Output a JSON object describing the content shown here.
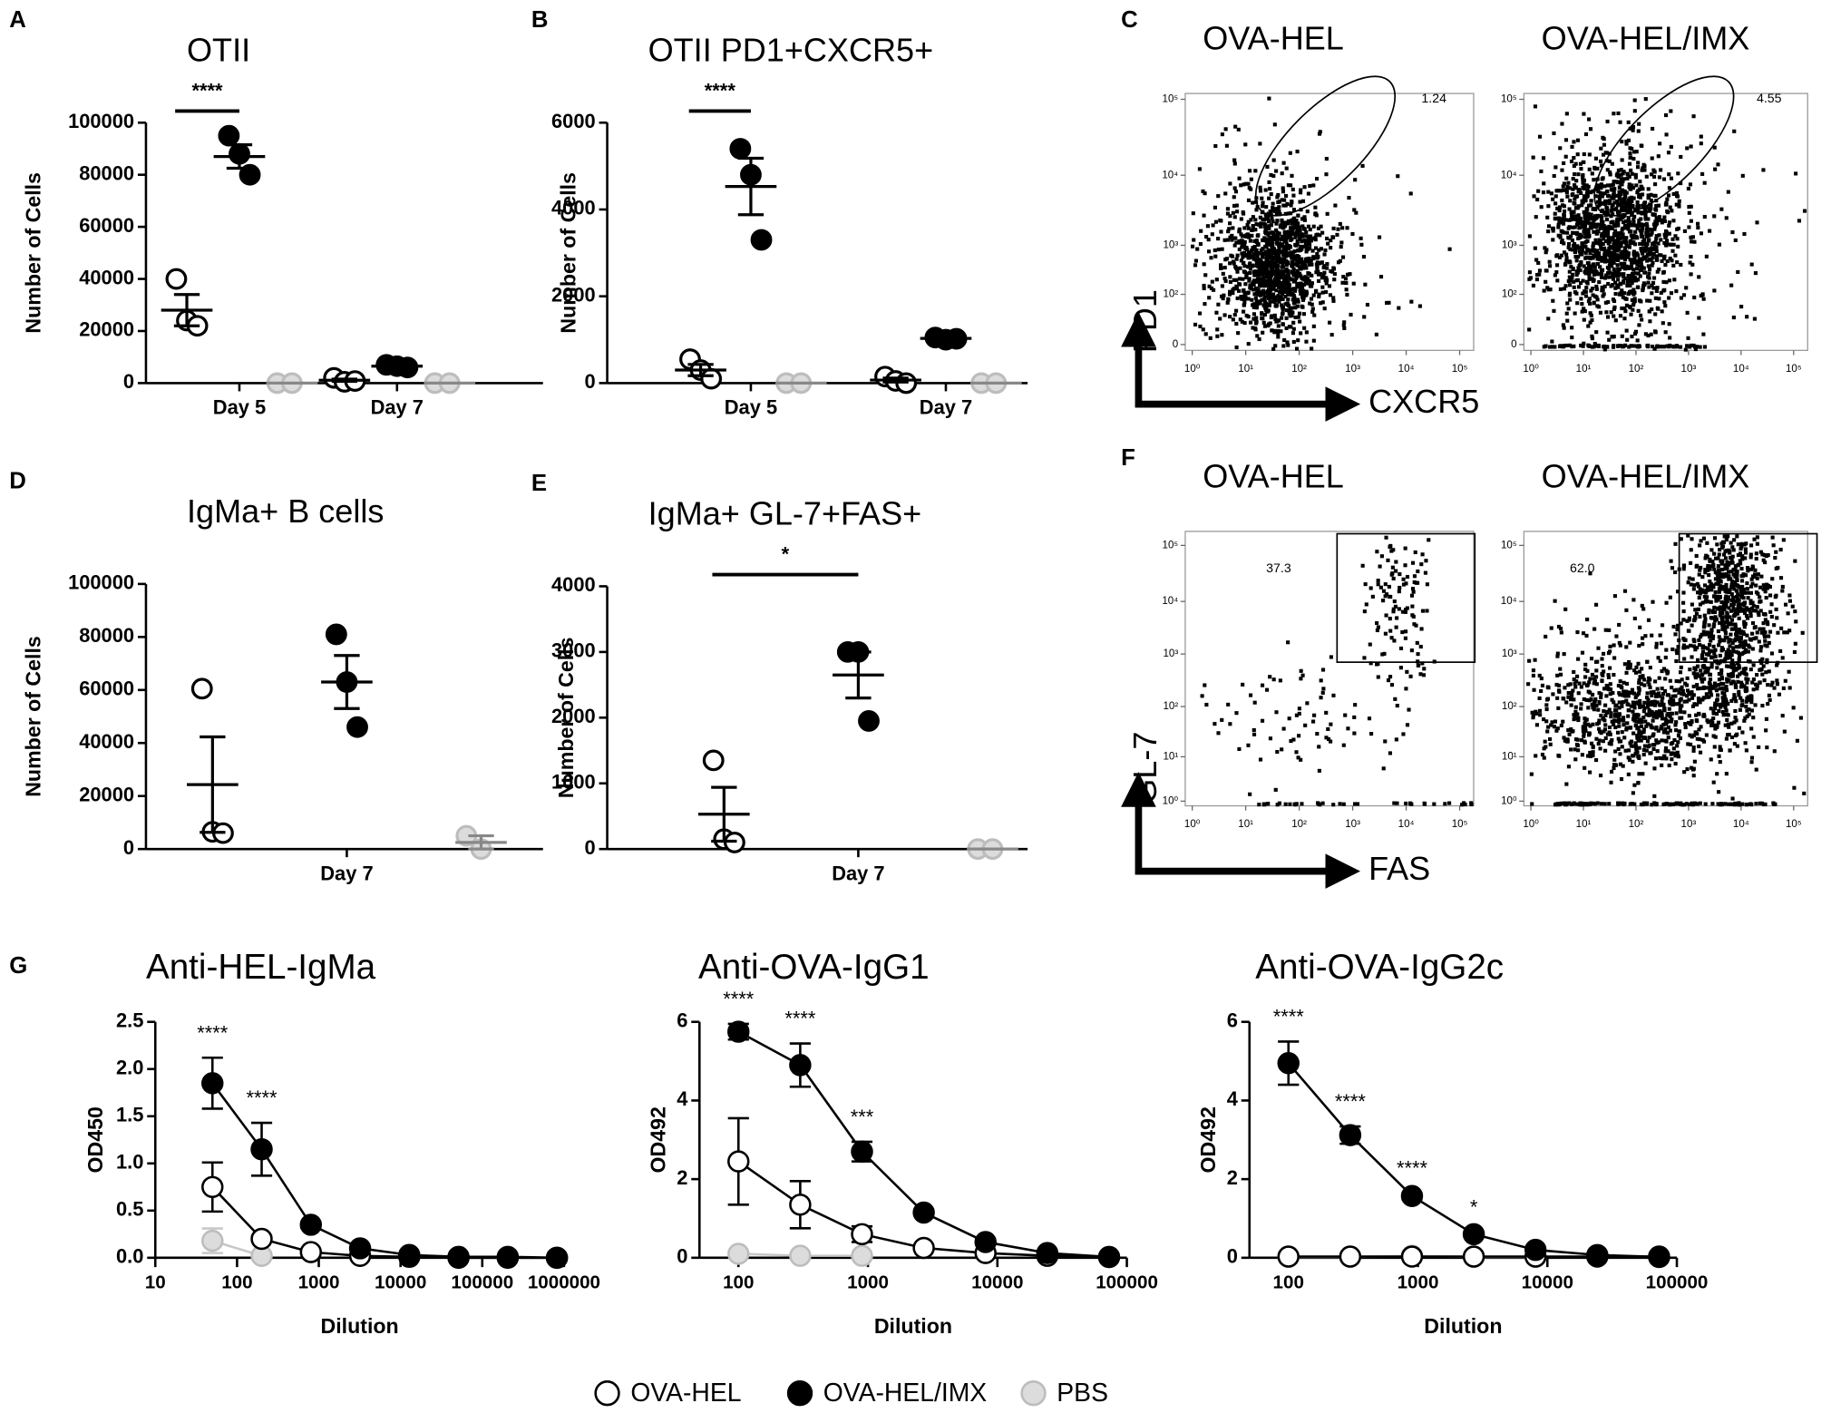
{
  "legend": [
    {
      "name": "OVA-HEL",
      "color": "#000000",
      "fill": "#ffffff"
    },
    {
      "name": "OVA-HEL/IMX",
      "color": "#000000",
      "fill": "#000000"
    },
    {
      "name": "PBS",
      "color": "#bdbdbd",
      "fill": "#dcdcdc"
    }
  ],
  "chart_data": [
    {
      "type": "dot",
      "panel": "A",
      "title": "OTII",
      "ylabel": "Number of Cells",
      "categories": [
        "Day 5",
        "Day 7"
      ],
      "ylim": [
        0,
        100000
      ],
      "yticks": [
        0,
        20000,
        40000,
        60000,
        80000,
        100000
      ],
      "series": [
        {
          "values": [
            [
              40000,
              24000,
              22000
            ],
            [
              2000,
              500,
              800
            ]
          ],
          "mean": [
            28000,
            1100
          ],
          "sem": [
            6000,
            450
          ]
        },
        {
          "values": [
            [
              95000,
              88000,
              80000
            ],
            [
              7000,
              6500,
              6000
            ]
          ],
          "mean": [
            87000,
            6500
          ],
          "sem": [
            4500,
            300
          ]
        },
        {
          "values": [
            [
              0,
              0
            ],
            [
              0,
              0
            ]
          ],
          "mean": [
            0,
            0
          ],
          "sem": [
            0,
            0
          ]
        }
      ],
      "comparisons": [
        {
          "label": "****",
          "category": 0,
          "series": [
            0,
            1
          ]
        }
      ]
    },
    {
      "type": "dot",
      "panel": "B",
      "title": "OTII PD1+CXCR5+",
      "ylabel": "Number of Cells",
      "categories": [
        "Day 5",
        "Day 7"
      ],
      "ylim": [
        0,
        6000
      ],
      "yticks": [
        0,
        2000,
        4000,
        6000
      ],
      "series": [
        {
          "values": [
            [
              550,
              300,
              100
            ],
            [
              150,
              50,
              0
            ]
          ],
          "mean": [
            300,
            70
          ],
          "sem": [
            130,
            45
          ]
        },
        {
          "values": [
            [
              5400,
              4800,
              3300
            ],
            [
              1050,
              1000,
              1020
            ]
          ],
          "mean": [
            4530,
            1030
          ],
          "sem": [
            650,
            20
          ]
        },
        {
          "values": [
            [
              0,
              0
            ],
            [
              0,
              0
            ]
          ],
          "mean": [
            0,
            0
          ],
          "sem": [
            0,
            0
          ]
        }
      ],
      "comparisons": [
        {
          "label": "****",
          "category": 0,
          "series": [
            0,
            1
          ]
        }
      ]
    },
    {
      "type": "flow",
      "panel": "C",
      "title": "OVA-HEL",
      "gate_label": "1.24",
      "xlabel": "CXCR5",
      "ylabel": "PD1",
      "xticks": [
        {
          "value": 1,
          "label": "10⁰"
        },
        {
          "value": 10,
          "label": "10¹"
        },
        {
          "value": 100,
          "label": "10²"
        },
        {
          "value": 1000,
          "label": "10³"
        },
        {
          "value": 10000,
          "label": "10⁴"
        },
        {
          "value": 100000,
          "label": "10⁵"
        }
      ],
      "yticks": [
        {
          "value": 100000,
          "label": "10⁵"
        },
        {
          "value": 10000,
          "label": "10⁴"
        },
        {
          "value": 1000,
          "label": "10³"
        },
        {
          "value": 100,
          "label": "10²"
        },
        0
      ]
    },
    {
      "type": "flow",
      "title": "OVA-HEL/IMX",
      "gate_label": "4.55",
      "xticks": [
        {
          "value": 1,
          "label": "10⁰"
        },
        {
          "value": 10,
          "label": "10¹"
        },
        {
          "value": 100,
          "label": "10²"
        },
        {
          "value": 1000,
          "label": "10³"
        },
        {
          "value": 10000,
          "label": "10⁴"
        },
        {
          "value": 100000,
          "label": "10⁵"
        }
      ],
      "yticks": [
        {
          "value": 100000,
          "label": "10⁵"
        },
        {
          "value": 10000,
          "label": "10⁴"
        },
        {
          "value": 1000,
          "label": "10³"
        },
        {
          "value": 100,
          "label": "10²"
        },
        0
      ]
    },
    {
      "type": "dot",
      "panel": "D",
      "title": "IgMa+ B cells",
      "ylabel": "Number of Cells",
      "categories": [
        "Day 7"
      ],
      "ylim": [
        0,
        100000
      ],
      "yticks": [
        0,
        20000,
        40000,
        60000,
        80000,
        100000
      ],
      "series": [
        {
          "values": [
            [
              60500,
              6500,
              6000
            ]
          ],
          "mean": [
            24300
          ],
          "sem": [
            18000
          ]
        },
        {
          "values": [
            [
              81000,
              63000,
              46000
            ]
          ],
          "mean": [
            63000
          ],
          "sem": [
            10000
          ]
        },
        {
          "values": [
            [
              5000,
              0
            ]
          ],
          "mean": [
            2500
          ],
          "sem": [
            2500
          ]
        }
      ]
    },
    {
      "type": "dot",
      "panel": "E",
      "title": "IgMa+ GL-7+FAS+",
      "ylabel": "Number of Cells",
      "categories": [
        "Day 7"
      ],
      "ylim": [
        0,
        4000
      ],
      "yticks": [
        0,
        1000,
        2000,
        3000,
        4000
      ],
      "series": [
        {
          "values": [
            [
              1350,
              150,
              100
            ]
          ],
          "mean": [
            530
          ],
          "sem": [
            410
          ]
        },
        {
          "values": [
            [
              3000,
              3000,
              1950
            ]
          ],
          "mean": [
            2650
          ],
          "sem": [
            350
          ]
        },
        {
          "values": [
            [
              0,
              0
            ]
          ],
          "mean": [
            0
          ],
          "sem": [
            0
          ]
        }
      ],
      "comparisons": [
        {
          "label": "*",
          "category": 0,
          "series": [
            0,
            1
          ]
        }
      ]
    },
    {
      "type": "flow",
      "panel": "F",
      "title": "OVA-HEL",
      "gate_label": "37.3",
      "xlabel": "FAS",
      "ylabel": "GL-7",
      "xticks": [
        {
          "value": 1,
          "label": "10⁰"
        },
        {
          "value": 10,
          "label": "10¹"
        },
        {
          "value": 100,
          "label": "10²"
        },
        {
          "value": 1000,
          "label": "10³"
        },
        {
          "value": 10000,
          "label": "10⁴"
        },
        {
          "value": 100000,
          "label": "10⁵"
        }
      ],
      "yticks": [
        {
          "value": 100000,
          "label": "10⁵"
        },
        {
          "value": 10000,
          "label": "10⁴"
        },
        {
          "value": 1000,
          "label": "10³"
        },
        {
          "value": 100,
          "label": "10²"
        },
        {
          "value": 10,
          "label": "10¹"
        },
        {
          "value": 1,
          "label": "10⁰"
        }
      ]
    },
    {
      "type": "flow",
      "title": "OVA-HEL/IMX",
      "gate_label": "62.0",
      "xticks": [
        {
          "value": 1,
          "label": "10⁰"
        },
        {
          "value": 10,
          "label": "10¹"
        },
        {
          "value": 100,
          "label": "10²"
        },
        {
          "value": 1000,
          "label": "10³"
        },
        {
          "value": 10000,
          "label": "10⁴"
        },
        {
          "value": 100000,
          "label": "10⁵"
        }
      ],
      "yticks": [
        {
          "value": 100000,
          "label": "10⁵"
        },
        {
          "value": 10000,
          "label": "10⁴"
        },
        {
          "value": 1000,
          "label": "10³"
        },
        {
          "value": 100,
          "label": "10²"
        },
        {
          "value": 10,
          "label": "10¹"
        },
        {
          "value": 1,
          "label": "10⁰"
        }
      ]
    },
    {
      "type": "line",
      "panel": "G",
      "title": "Anti-HEL-IgMa",
      "xlabel": "Dilution",
      "ylabel": "OD450",
      "log_x": true,
      "x": [
        50,
        200,
        800,
        3200,
        12800,
        51200,
        204800,
        819200
      ],
      "xlim": [
        10,
        1000000
      ],
      "xticks": [
        10,
        100,
        1000,
        10000,
        100000,
        1000000
      ],
      "ylim": [
        0,
        2.5
      ],
      "yticks": [
        {
          "value": 0,
          "label": "0.0"
        },
        0.5,
        {
          "value": 1,
          "label": "1.0"
        },
        1.5,
        {
          "value": 2,
          "label": "2.0"
        },
        2.5
      ],
      "series": [
        {
          "values": [
            0.75,
            0.2,
            0.06,
            0.02,
            0.01,
            0.0,
            0.0,
            0.0
          ],
          "err": [
            0.26,
            0.03,
            0.02,
            0.01,
            0,
            0,
            0,
            0
          ]
        },
        {
          "values": [
            1.85,
            1.15,
            0.35,
            0.1,
            0.03,
            0.01,
            0.01,
            0.0
          ],
          "err": [
            0.27,
            0.28,
            0.03,
            0.02,
            0.01,
            0,
            0,
            0
          ]
        },
        {
          "values": [
            0.18,
            0.02,
            null,
            null,
            null,
            null,
            null,
            null
          ],
          "err": [
            0.13,
            0.01,
            null,
            null,
            null,
            null,
            null,
            null
          ]
        }
      ],
      "annotations": [
        {
          "text": "****",
          "x": 50
        },
        {
          "text": "****",
          "x": 200
        }
      ]
    },
    {
      "type": "line",
      "title": "Anti-OVA-IgG1",
      "xlabel": "Dilution",
      "ylabel": "OD492",
      "log_x": true,
      "x": [
        100,
        300,
        900,
        2700,
        8100,
        24300,
        72900
      ],
      "xlim": [
        50,
        100000
      ],
      "xticks": [
        100,
        1000,
        10000,
        100000
      ],
      "ylim": [
        0,
        6
      ],
      "yticks": [
        0,
        2,
        4,
        6
      ],
      "series": [
        {
          "values": [
            2.45,
            1.35,
            0.6,
            0.25,
            0.12,
            0.05,
            0.02
          ],
          "err": [
            1.1,
            0.6,
            0.2,
            0.05,
            0.03,
            0.02,
            0.01
          ]
        },
        {
          "values": [
            5.75,
            4.9,
            2.7,
            1.15,
            0.4,
            0.12,
            0.02
          ],
          "err": [
            0.2,
            0.55,
            0.25,
            0.05,
            0.05,
            0.03,
            0.01
          ]
        },
        {
          "values": [
            0.1,
            0.05,
            0.05,
            null,
            null,
            null,
            null
          ],
          "err": [
            0.05,
            0.02,
            0.02,
            null,
            null,
            null,
            null
          ]
        }
      ],
      "annotations": [
        {
          "text": "****",
          "x": 100
        },
        {
          "text": "****",
          "x": 300
        },
        {
          "text": "***",
          "x": 900
        }
      ]
    },
    {
      "type": "line",
      "title": "Anti-OVA-IgG2c",
      "xlabel": "Dilution",
      "ylabel": "OD492",
      "log_x": true,
      "x": [
        100,
        300,
        900,
        2700,
        8100,
        24300,
        72900
      ],
      "xlim": [
        50,
        100000
      ],
      "xticks": [
        100,
        1000,
        10000,
        100000
      ],
      "ylim": [
        0,
        6
      ],
      "yticks": [
        0,
        2,
        4,
        6
      ],
      "series": [
        {
          "values": [
            0.03,
            0.03,
            0.03,
            0.03,
            0.03,
            0.03,
            0.03
          ],
          "err": [
            0.01,
            0.01,
            0.01,
            0.01,
            0.01,
            0.01,
            0.01
          ]
        },
        {
          "values": [
            4.95,
            3.12,
            1.57,
            0.6,
            0.2,
            0.07,
            0.02
          ],
          "err": [
            0.55,
            0.22,
            0.08,
            0.05,
            0.03,
            0.02,
            0.01
          ]
        },
        {
          "values": [
            0.02,
            0.02,
            0.05,
            0.02,
            0.02,
            null,
            null
          ],
          "err": [
            0,
            0,
            0,
            0,
            0,
            null,
            null
          ]
        }
      ],
      "annotations": [
        {
          "text": "****",
          "x": 100
        },
        {
          "text": "****",
          "x": 300
        },
        {
          "text": "****",
          "x": 900
        },
        {
          "text": "*",
          "x": 2700
        }
      ]
    }
  ]
}
